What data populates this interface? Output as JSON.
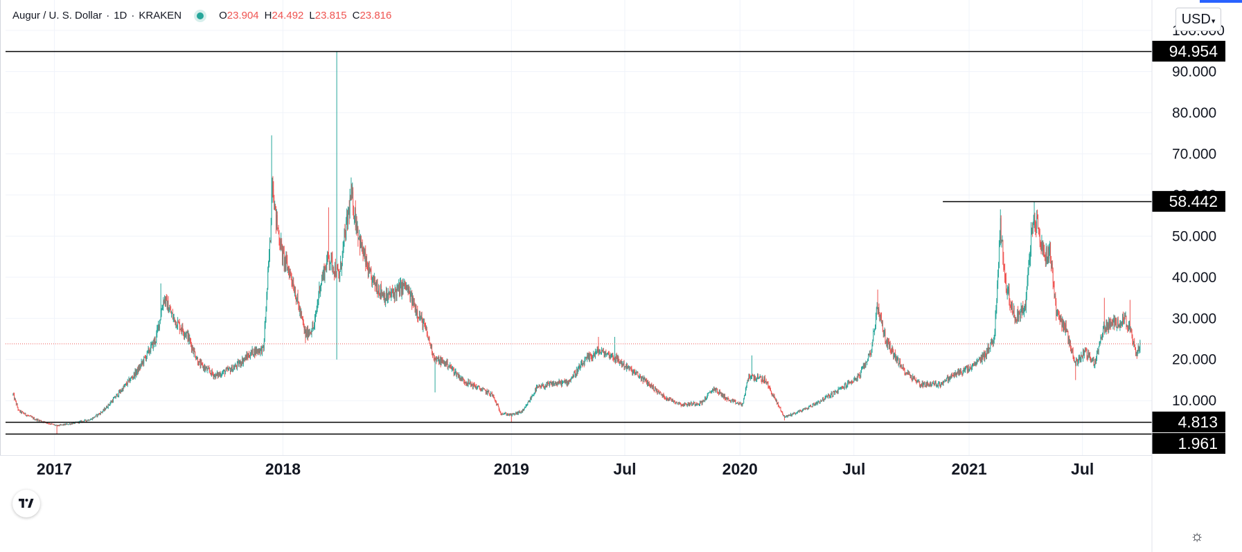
{
  "legend": {
    "symbol": "Augur / U. S. Dollar",
    "interval": "1D",
    "exchange": "KRAKEN",
    "open_label": "O",
    "open": "23.904",
    "high_label": "H",
    "high": "24.492",
    "low_label": "L",
    "low": "23.815",
    "close_label": "C",
    "close": "23.816"
  },
  "currency_button": {
    "label": "USD"
  },
  "icons": {
    "settings": "settings-icon",
    "logo": "tradingview-logo-icon",
    "status_dot": "status-dot-icon"
  },
  "colors": {
    "up": "#26a69a",
    "down": "#ef5350",
    "level_line": "#000000",
    "price_line": "#ef5350",
    "accent": "#2962ff"
  },
  "chart_data": {
    "type": "candlestick",
    "symbol": "Augur / U. S. Dollar",
    "exchange": "KRAKEN",
    "interval": "1D",
    "ylim": [
      0,
      105
    ],
    "y_ticks": [
      "10.000",
      "20.000",
      "30.000",
      "40.000",
      "50.000",
      "60.000",
      "70.000",
      "80.000",
      "90.000",
      "100.000"
    ],
    "x_ticks": [
      {
        "label": "2017",
        "date": "2017-01-01"
      },
      {
        "label": "2018",
        "date": "2018-01-01"
      },
      {
        "label": "2019",
        "date": "2019-01-01"
      },
      {
        "label": "Jul",
        "date": "2019-07-01"
      },
      {
        "label": "2020",
        "date": "2020-01-01"
      },
      {
        "label": "Jul",
        "date": "2020-07-01"
      },
      {
        "label": "2021",
        "date": "2021-01-01"
      },
      {
        "label": "Jul",
        "date": "2021-07-01"
      }
    ],
    "x_range": [
      "2016-10-15",
      "2021-10-20"
    ],
    "horizontal_levels": [
      {
        "value": 94.954,
        "label": "94.954",
        "start_date": "2016-10-15"
      },
      {
        "value": 58.442,
        "label": "58.442",
        "start_date": "2020-11-20"
      },
      {
        "value": 4.813,
        "label": "4.813",
        "start_date": "2016-10-15"
      },
      {
        "value": 1.961,
        "label": "1.961",
        "start_date": "2016-10-15"
      }
    ],
    "last_price": 23.816,
    "price_path": [
      [
        "2016-10-27",
        11.5
      ],
      [
        "2016-11-05",
        7.5
      ],
      [
        "2016-12-01",
        5.5
      ],
      [
        "2017-01-05",
        3.9
      ],
      [
        "2017-02-01",
        4.5
      ],
      [
        "2017-03-01",
        5.5
      ],
      [
        "2017-03-20",
        7.5
      ],
      [
        "2017-04-15",
        12.0
      ],
      [
        "2017-05-15",
        17.5
      ],
      [
        "2017-06-12",
        25.0
      ],
      [
        "2017-06-25",
        35.0
      ],
      [
        "2017-07-10",
        30.0
      ],
      [
        "2017-08-01",
        26.0
      ],
      [
        "2017-08-20",
        19.0
      ],
      [
        "2017-09-15",
        16.0
      ],
      [
        "2017-10-15",
        18.0
      ],
      [
        "2017-11-15",
        22.0
      ],
      [
        "2017-12-01",
        22.5
      ],
      [
        "2017-12-12",
        50.0
      ],
      [
        "2017-12-15",
        65.0
      ],
      [
        "2017-12-20",
        55.0
      ],
      [
        "2018-01-01",
        45.0
      ],
      [
        "2018-01-15",
        40.0
      ],
      [
        "2018-02-06",
        26.0
      ],
      [
        "2018-02-20",
        28.0
      ],
      [
        "2018-03-01",
        38.0
      ],
      [
        "2018-03-15",
        45.0
      ],
      [
        "2018-04-01",
        40.0
      ],
      [
        "2018-04-10",
        50.0
      ],
      [
        "2018-04-20",
        60.0
      ],
      [
        "2018-05-05",
        48.0
      ],
      [
        "2018-05-20",
        40.0
      ],
      [
        "2018-06-15",
        35.0
      ],
      [
        "2018-07-15",
        38.0
      ],
      [
        "2018-08-15",
        28.0
      ],
      [
        "2018-09-01",
        20.0
      ],
      [
        "2018-09-20",
        19.0
      ],
      [
        "2018-10-15",
        15.0
      ],
      [
        "2018-11-10",
        13.0
      ],
      [
        "2018-12-01",
        11.5
      ],
      [
        "2018-12-15",
        7.0
      ],
      [
        "2019-01-01",
        6.5
      ],
      [
        "2019-01-20",
        7.5
      ],
      [
        "2019-02-10",
        13.0
      ],
      [
        "2019-03-05",
        14.0
      ],
      [
        "2019-04-01",
        14.5
      ],
      [
        "2019-05-01",
        20.0
      ],
      [
        "2019-05-20",
        22.0
      ],
      [
        "2019-06-10",
        21.0
      ],
      [
        "2019-07-01",
        18.5
      ],
      [
        "2019-08-01",
        15.0
      ],
      [
        "2019-09-01",
        11.0
      ],
      [
        "2019-10-01",
        9.0
      ],
      [
        "2019-11-01",
        9.5
      ],
      [
        "2019-11-20",
        13.0
      ],
      [
        "2019-12-15",
        10.0
      ],
      [
        "2020-01-05",
        9.0
      ],
      [
        "2020-01-15",
        16.0
      ],
      [
        "2020-02-10",
        15.0
      ],
      [
        "2020-03-12",
        6.0
      ],
      [
        "2020-04-15",
        8.0
      ],
      [
        "2020-06-01",
        12.0
      ],
      [
        "2020-07-10",
        16.0
      ],
      [
        "2020-07-28",
        22.0
      ],
      [
        "2020-08-08",
        33.0
      ],
      [
        "2020-08-20",
        25.0
      ],
      [
        "2020-09-15",
        18.0
      ],
      [
        "2020-10-15",
        14.0
      ],
      [
        "2020-11-15",
        14.0
      ],
      [
        "2020-12-10",
        16.5
      ],
      [
        "2021-01-05",
        18.0
      ],
      [
        "2021-01-25",
        21.0
      ],
      [
        "2021-02-10",
        25.0
      ],
      [
        "2021-02-20",
        52.0
      ],
      [
        "2021-03-01",
        38.0
      ],
      [
        "2021-03-15",
        30.0
      ],
      [
        "2021-04-01",
        33.0
      ],
      [
        "2021-04-10",
        50.0
      ],
      [
        "2021-04-18",
        54.0
      ],
      [
        "2021-05-01",
        45.0
      ],
      [
        "2021-05-10",
        47.0
      ],
      [
        "2021-05-20",
        32.0
      ],
      [
        "2021-06-05",
        27.0
      ],
      [
        "2021-06-20",
        19.0
      ],
      [
        "2021-07-05",
        22.0
      ],
      [
        "2021-07-20",
        19.0
      ],
      [
        "2021-08-05",
        28.0
      ],
      [
        "2021-08-25",
        29.0
      ],
      [
        "2021-09-07",
        30.0
      ],
      [
        "2021-09-15",
        27.0
      ],
      [
        "2021-09-25",
        21.0
      ],
      [
        "2021-10-01",
        23.8
      ]
    ],
    "extreme_wicks": [
      [
        "2016-10-27",
        11.5
      ],
      [
        "2017-01-05",
        1.961
      ],
      [
        "2017-06-20",
        38.5
      ],
      [
        "2017-12-14",
        74.5
      ],
      [
        "2018-02-06",
        24.0
      ],
      [
        "2018-03-15",
        57.0
      ],
      [
        "2018-03-28",
        94.954
      ],
      [
        "2018-03-28",
        20.0
      ],
      [
        "2018-04-20",
        64.0
      ],
      [
        "2018-09-01",
        12.0
      ],
      [
        "2019-01-01",
        4.813
      ],
      [
        "2019-05-20",
        25.5
      ],
      [
        "2019-06-15",
        25.5
      ],
      [
        "2020-01-20",
        21.0
      ],
      [
        "2020-03-12",
        5.2
      ],
      [
        "2020-08-08",
        37.0
      ],
      [
        "2021-02-20",
        56.5
      ],
      [
        "2021-04-15",
        58.442
      ],
      [
        "2021-06-20",
        15.0
      ],
      [
        "2021-08-05",
        35.0
      ],
      [
        "2021-09-15",
        34.5
      ]
    ]
  }
}
